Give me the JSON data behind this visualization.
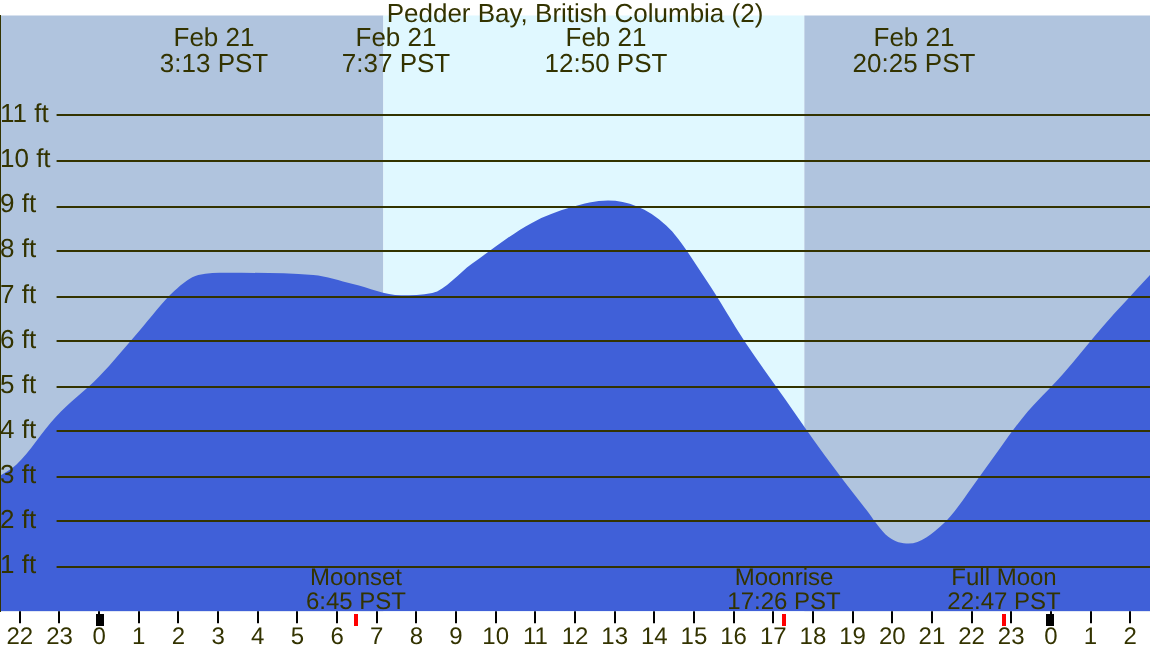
{
  "chart_data": {
    "type": "area",
    "title": "Pedder Bay, British Columbia (2)",
    "x": [
      "--02-20T21:30",
      "--02-20T21:55",
      "--02-20T22:54",
      "--02-21T00:00",
      "--02-21T01:00",
      "--02-21T01:54",
      "--02-21T02:30",
      "--02-21T03:13",
      "--02-21T05:24",
      "--02-21T06:24",
      "--02-21T07:37",
      "--02-21T08:24",
      "--02-21T09:24",
      "--02-21T10:54",
      "--02-21T11:54",
      "--02-21T12:50",
      "--02-21T14:18",
      "--02-21T15:18",
      "--02-21T16:18",
      "--02-21T17:18",
      "--02-21T18:18",
      "--02-21T19:18",
      "--02-21T19:54",
      "--02-21T20:25",
      "--02-21T21:18",
      "--02-21T22:18",
      "--02-21T23:18",
      "--02-22T00:18",
      "--02-22T01:18",
      "--02-22T02:30"
    ],
    "series": [
      {
        "color": "#4060d8",
        "values": [
          3.0,
          3.25,
          4.3,
          5.2,
          6.2,
          7.1,
          7.45,
          7.5,
          7.45,
          7.25,
          7.0,
          7.05,
          7.7,
          8.6,
          8.95,
          9.1,
          8.55,
          7.35,
          5.95,
          4.7,
          3.45,
          2.3,
          1.65,
          1.5,
          1.95,
          3.1,
          4.3,
          5.25,
          6.3,
          7.45
        ]
      }
    ],
    "xlim": [
      "--02-20T21:30",
      "--02-22T02:30"
    ],
    "xticks": [
      {
        "value": "--02-20T22:00",
        "label": "22"
      },
      {
        "value": "--02-20T23:00",
        "label": "23"
      },
      {
        "value": "--02-21T00:00",
        "label": "0"
      },
      {
        "value": "--02-21T01:00",
        "label": "1"
      },
      {
        "value": "--02-21T02:00",
        "label": "2"
      },
      {
        "value": "--02-21T03:00",
        "label": "3"
      },
      {
        "value": "--02-21T04:00",
        "label": "4"
      },
      {
        "value": "--02-21T05:00",
        "label": "5"
      },
      {
        "value": "--02-21T06:00",
        "label": "6"
      },
      {
        "value": "--02-21T07:00",
        "label": "7"
      },
      {
        "value": "--02-21T08:00",
        "label": "8"
      },
      {
        "value": "--02-21T09:00",
        "label": "9"
      },
      {
        "value": "--02-21T10:00",
        "label": "10"
      },
      {
        "value": "--02-21T11:00",
        "label": "11"
      },
      {
        "value": "--02-21T12:00",
        "label": "12"
      },
      {
        "value": "--02-21T13:00",
        "label": "13"
      },
      {
        "value": "--02-21T14:00",
        "label": "14"
      },
      {
        "value": "--02-21T15:00",
        "label": "15"
      },
      {
        "value": "--02-21T16:00",
        "label": "16"
      },
      {
        "value": "--02-21T17:00",
        "label": "17"
      },
      {
        "value": "--02-21T18:00",
        "label": "18"
      },
      {
        "value": "--02-21T19:00",
        "label": "19"
      },
      {
        "value": "--02-21T20:00",
        "label": "20"
      },
      {
        "value": "--02-21T21:00",
        "label": "21"
      },
      {
        "value": "--02-21T22:00",
        "label": "22"
      },
      {
        "value": "--02-21T23:00",
        "label": "23"
      },
      {
        "value": "--02-22T00:00",
        "label": "0"
      },
      {
        "value": "--02-22T01:00",
        "label": "1"
      },
      {
        "value": "--02-22T02:00",
        "label": "2"
      }
    ],
    "ylim": [
      0,
      13.2
    ],
    "yticks": [
      {
        "value": 1,
        "label": "1 ft"
      },
      {
        "value": 2,
        "label": "2 ft"
      },
      {
        "value": 3,
        "label": "3 ft"
      },
      {
        "value": 4,
        "label": "4 ft"
      },
      {
        "value": 5,
        "label": "5 ft"
      },
      {
        "value": 6,
        "label": "6 ft"
      },
      {
        "value": 7,
        "label": "7 ft"
      },
      {
        "value": 8,
        "label": "8 ft"
      },
      {
        "value": 9,
        "label": "9 ft"
      },
      {
        "value": 10,
        "label": "10 ft"
      },
      {
        "value": 11,
        "label": "11 ft"
      }
    ],
    "grid": "y",
    "marker": "none",
    "legend": false,
    "bands": [
      {
        "axis": "x",
        "from": "--02-20T21:30",
        "to": "--02-21T07:10",
        "color": "#b0c4de"
      },
      {
        "axis": "x",
        "from": "--02-21T07:10",
        "to": "--02-21T17:47",
        "color": "#e0f8ff"
      },
      {
        "axis": "x",
        "from": "--02-21T17:47",
        "to": "--02-22T02:30",
        "color": "#b0c4de"
      }
    ],
    "annotations": [
      "Feb 21\n3:13 PST",
      "Feb 21\n7:37 PST",
      "Feb 21\n12:50 PST",
      "Feb 21\n20:25 PST",
      "Moonset\n6:45 PST",
      "Moonrise\n17:26 PST",
      "Full Moon\n22:47 PST"
    ]
  }
}
